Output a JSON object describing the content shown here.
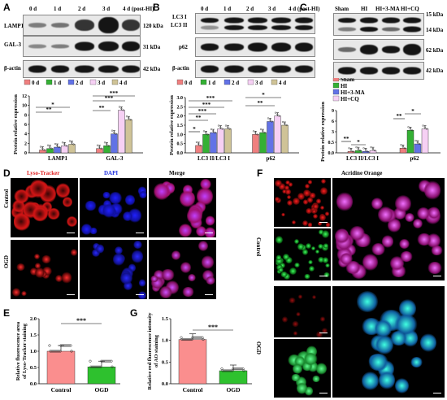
{
  "panels": {
    "A": "A",
    "B": "B",
    "C": "C",
    "D": "D",
    "E": "E",
    "F": "F",
    "G": "G"
  },
  "timepoints": [
    "0 d",
    "1 d",
    "2 d",
    "3 d",
    "4 d (post-HI)"
  ],
  "blotA": {
    "rows": [
      {
        "label": "LAMP1",
        "kda": "120 kDa"
      },
      {
        "label": "GAL-3",
        "kda": "31 kDa"
      },
      {
        "label": "β-actin",
        "kda": "42 kDa"
      }
    ]
  },
  "blotB": {
    "rows": [
      {
        "label": "LC3 I",
        "label2": "LC3 II",
        "kda": ""
      },
      {
        "label": "p62",
        "kda": ""
      },
      {
        "label": "β-actin",
        "kda": ""
      }
    ]
  },
  "blotC": {
    "groups": [
      "Sham",
      "HI",
      "HI+3-MA",
      "HI+CQ"
    ],
    "kda": [
      "15 kDa",
      "14 kDa",
      "62 kDa",
      "42 kDa"
    ]
  },
  "legend_days": [
    "0 d",
    "1 d",
    "2 d",
    "3 d",
    "4 d"
  ],
  "legend_groups": [
    "Sham",
    "HI",
    "HI+3-MA",
    "HI+CQ"
  ],
  "colors": {
    "d0": "#ef7f7f",
    "d1": "#34b034",
    "d2": "#6272e6",
    "d3": "#f6d0f4",
    "d4": "#cfc397",
    "sham": "#ef7f7f",
    "hi": "#34b034",
    "ma": "#6272e6",
    "cq": "#f6d0f4",
    "control": "#fa8e8e",
    "ogd": "#2ec12e"
  },
  "ylabel": "Protein relative expression",
  "chart_data": [
    {
      "type": "bar",
      "panel": "A",
      "categories": [
        "LAMP1",
        "GAL-3"
      ],
      "series": [
        {
          "name": "0 d",
          "values": [
            0.6,
            0.9
          ]
        },
        {
          "name": "1 d",
          "values": [
            0.9,
            1.5
          ]
        },
        {
          "name": "2 d",
          "values": [
            1.2,
            4.0
          ]
        },
        {
          "name": "3 d",
          "values": [
            1.5,
            9.0
          ]
        },
        {
          "name": "4 d",
          "values": [
            1.8,
            7.0
          ]
        }
      ],
      "yticks": [
        "0",
        "2",
        "4",
        "6",
        "8",
        "10",
        "12"
      ],
      "ylim": [
        0,
        12
      ],
      "sig": [
        "*",
        "**",
        "**",
        "***",
        "***"
      ]
    },
    {
      "type": "bar",
      "panel": "B",
      "categories": [
        "LC3 II/LC3 I",
        "p62"
      ],
      "series": [
        {
          "name": "0 d",
          "values": [
            0.4,
            1.0
          ]
        },
        {
          "name": "1 d",
          "values": [
            1.0,
            1.1
          ]
        },
        {
          "name": "2 d",
          "values": [
            1.1,
            1.7
          ]
        },
        {
          "name": "3 d",
          "values": [
            1.3,
            2.0
          ]
        },
        {
          "name": "4 d",
          "values": [
            1.3,
            1.5
          ]
        }
      ],
      "yticks": [
        "0.0",
        "0.5",
        "1.0",
        "1.5",
        "2.0",
        "2.5",
        "3.0"
      ],
      "ylim": [
        0,
        3
      ],
      "sig": [
        "*",
        "**",
        "***",
        "***",
        "***",
        "*",
        "**"
      ]
    },
    {
      "type": "bar",
      "panel": "C",
      "categories": [
        "LC3 II/LC3 I",
        "p62"
      ],
      "series": [
        {
          "name": "Sham",
          "values": [
            0.3,
            1.0
          ]
        },
        {
          "name": "HI",
          "values": [
            0.5,
            4.8
          ]
        },
        {
          "name": "HI+3-MA",
          "values": [
            0.3,
            1.9
          ]
        },
        {
          "name": "HI+CQ",
          "values": [
            0.5,
            5.1
          ]
        }
      ],
      "yticks": [
        "0.0",
        "0.5",
        "3",
        "6",
        "9"
      ],
      "ylim": [
        0,
        9
      ],
      "sig": [
        "**",
        "*",
        "**",
        "*"
      ]
    },
    {
      "type": "bar",
      "panel": "E",
      "categories": [
        "Control",
        "OGD"
      ],
      "values": [
        1.0,
        0.52
      ],
      "ylabel": "Relative fluorescence area of Lyso-Tracker staining",
      "yticks": [
        "0.0",
        "0.5",
        "1.0",
        "1.5",
        "2.0"
      ],
      "ylim": [
        0,
        2
      ],
      "sig": "***"
    },
    {
      "type": "bar",
      "panel": "G",
      "categories": [
        "Control",
        "OGD"
      ],
      "values": [
        1.02,
        0.3
      ],
      "ylabel": "Relative red fluorescence intensity of AO staining",
      "yticks": [
        "0.0",
        "0.5",
        "1.0",
        "1.5"
      ],
      "ylim": [
        0,
        1.5
      ],
      "sig": "***"
    }
  ],
  "D": {
    "cols": [
      "Lyso-Tracker",
      "DAPI",
      "Merge"
    ],
    "rows": [
      "Control",
      "OGD"
    ]
  },
  "F": {
    "title": "Acridine Orange",
    "rows": [
      "Control",
      "OGD"
    ]
  }
}
